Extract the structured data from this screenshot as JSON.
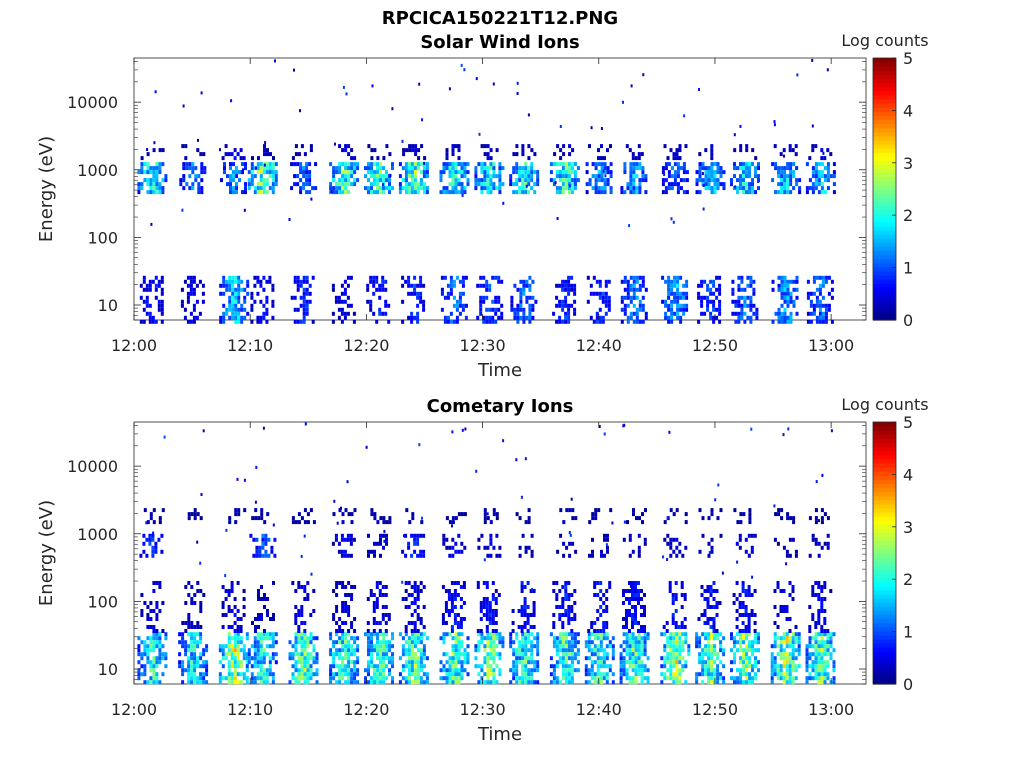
{
  "figure": {
    "title": "RPCICA150221T12.PNG"
  },
  "chart_data": [
    {
      "type": "heatmap",
      "title": "Solar Wind Ions",
      "xlabel": "Time",
      "ylabel": "Energy (eV)",
      "x_tick_labels": [
        "12:00",
        "12:10",
        "12:20",
        "12:30",
        "12:40",
        "12:50",
        "13:00"
      ],
      "xlim": [
        "12:00",
        "13:03"
      ],
      "y_scale": "log",
      "y_tick_labels": [
        "10",
        "100",
        "1000",
        "10000"
      ],
      "ylim": [
        6,
        45000
      ],
      "colorbar": {
        "label": "Log counts",
        "range": [
          0,
          5
        ],
        "tick_labels": [
          "0",
          "1",
          "2",
          "3",
          "4",
          "5"
        ],
        "colormap": "jet"
      },
      "scan_times": [
        "12:01.5",
        "12:05",
        "12:08.5",
        "12:11",
        "12:14.5",
        "12:18",
        "12:21",
        "12:24",
        "12:27.5",
        "12:30.5",
        "12:33.5",
        "12:37",
        "12:40",
        "12:43",
        "12:46.5",
        "12:49.5",
        "12:52.5",
        "12:56",
        "12:59"
      ],
      "bands": [
        {
          "energy_range_eV": [
            6,
            27
          ],
          "log_counts": [
            0.8,
            0.6,
            1.8,
            0.7,
            0.9,
            0.6,
            0.9,
            0.9,
            1.3,
            1.1,
            1.4,
            0.9,
            1.0,
            1.4,
            1.6,
            1.0,
            1.3,
            1.6,
            1.3
          ]
        },
        {
          "energy_range_eV": [
            450,
            1300
          ],
          "log_counts": [
            2.2,
            1.4,
            1.4,
            2.8,
            1.2,
            2.5,
            2.4,
            2.6,
            2.2,
            2.2,
            2.1,
            2.4,
            1.6,
            1.6,
            1.2,
            1.8,
            2.0,
            1.8,
            1.8
          ]
        },
        {
          "energy_range_eV": [
            1500,
            2400
          ],
          "log_counts": [
            0.4,
            0.4,
            0.6,
            0.4,
            0.3,
            0.5,
            0.3,
            0.4,
            0.5,
            0.4,
            0.4,
            0.4,
            0.4,
            0.4,
            0.4,
            0.4,
            0.4,
            0.5,
            0.6
          ]
        }
      ]
    },
    {
      "type": "heatmap",
      "title": "Cometary Ions",
      "xlabel": "Time",
      "ylabel": "Energy (eV)",
      "x_tick_labels": [
        "12:00",
        "12:10",
        "12:20",
        "12:30",
        "12:40",
        "12:50",
        "13:00"
      ],
      "xlim": [
        "12:00",
        "13:03"
      ],
      "y_scale": "log",
      "y_tick_labels": [
        "10",
        "100",
        "1000",
        "10000"
      ],
      "ylim": [
        6,
        45000
      ],
      "colorbar": {
        "label": "Log counts",
        "range": [
          0,
          5
        ],
        "tick_labels": [
          "0",
          "1",
          "2",
          "3",
          "4",
          "5"
        ],
        "colormap": "jet"
      },
      "scan_times": [
        "12:01.5",
        "12:05",
        "12:08.5",
        "12:11",
        "12:14.5",
        "12:18",
        "12:21",
        "12:24",
        "12:27.5",
        "12:30.5",
        "12:33.5",
        "12:37",
        "12:40",
        "12:43",
        "12:46.5",
        "12:49.5",
        "12:52.5",
        "12:56",
        "12:59"
      ],
      "bands": [
        {
          "energy_range_eV": [
            6,
            35
          ],
          "log_counts": [
            2.2,
            2.0,
            3.0,
            2.2,
            2.6,
            2.4,
            2.5,
            2.6,
            2.6,
            2.7,
            2.3,
            2.4,
            2.4,
            2.5,
            3.0,
            2.6,
            2.7,
            2.9,
            2.7
          ]
        },
        {
          "energy_range_eV": [
            35,
            200
          ],
          "log_counts": [
            0.5,
            0.4,
            0.6,
            0.4,
            0.6,
            0.5,
            0.6,
            0.6,
            0.8,
            0.8,
            0.8,
            0.8,
            0.8,
            0.8,
            0.8,
            0.8,
            0.7,
            0.6,
            0.6
          ]
        },
        {
          "energy_range_eV": [
            450,
            1000
          ],
          "log_counts": [
            1.0,
            0.0,
            0.0,
            1.2,
            0.0,
            0.6,
            0.5,
            0.9,
            0.6,
            0.5,
            0.3,
            0.4,
            0.4,
            0.4,
            0.5,
            0.3,
            0.6,
            0.4,
            0.4
          ]
        },
        {
          "energy_range_eV": [
            1500,
            2400
          ],
          "log_counts": [
            0.3,
            0.2,
            0.3,
            0.3,
            0.3,
            0.3,
            0.3,
            0.3,
            0.3,
            0.3,
            0.3,
            0.3,
            0.3,
            0.3,
            0.3,
            0.3,
            0.3,
            0.3,
            0.3
          ]
        }
      ]
    }
  ]
}
